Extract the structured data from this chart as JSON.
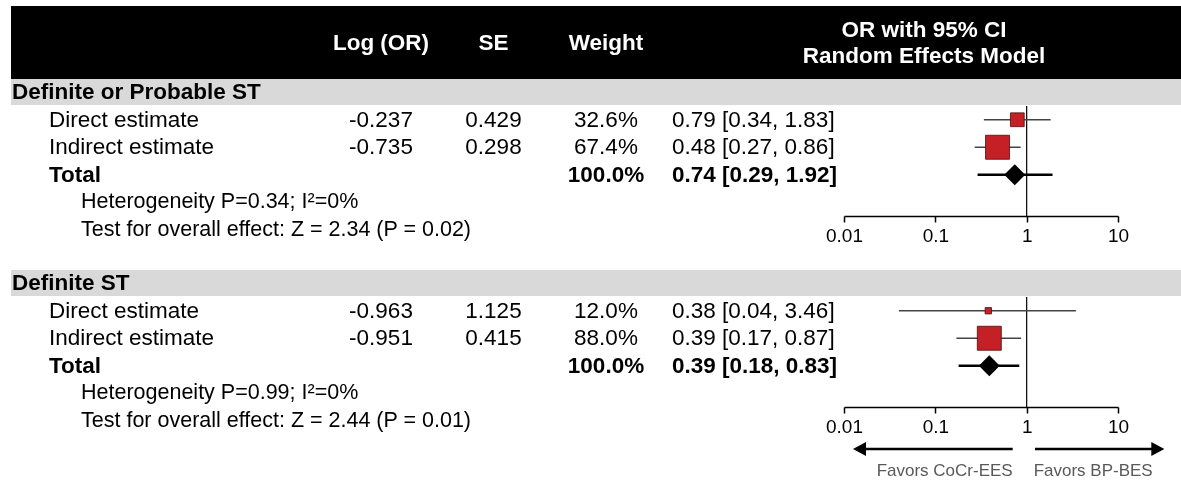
{
  "chart_data": [
    {
      "type": "other",
      "title": "Definite or Probable ST",
      "categories": [
        "Log (OR)",
        "SE",
        "Weight"
      ],
      "y_categories": [
        "Direct estimate",
        "Indirect estimate",
        "Total"
      ],
      "cell_labels": [
        [
          "-0.237",
          "0.429",
          "32.6%"
        ],
        [
          "-0.735",
          "0.298",
          "67.4%"
        ],
        [
          null,
          null,
          "100.0%"
        ]
      ],
      "annotations": [
        "Heterogeneity P=0.34; I²=0%",
        "Test for overall effect: Z = 2.34 (P = 0.02)"
      ]
    },
    {
      "type": "scatter",
      "title": "OR with 95% CI\nRandom Effects Model",
      "orientation": "horizontal",
      "categories": [
        "0.79 [0.34, 1.83]",
        "0.48 [0.27, 0.86]",
        "0.74 [0.29, 1.92]",
        null
      ],
      "series": [
        {
          "color": "#c42026",
          "marker": "square",
          "values": [
            0.79,
            0.48,
            null,
            null
          ],
          "errors": [
            [
              0.34,
              1.83
            ],
            [
              0.27,
              0.86
            ],
            null,
            null
          ],
          "sizes": [
            0.33,
            1,
            null,
            null
          ]
        },
        {
          "color": "#000000",
          "marker": "diamond",
          "values": [
            null,
            null,
            0.74,
            null
          ],
          "errors": [
            null,
            null,
            [
              0.29,
              1.92
            ],
            null
          ]
        }
      ],
      "log": "x",
      "xlim": [
        0.01,
        10
      ],
      "xticks": [
        0.01,
        0.1,
        1,
        10
      ],
      "ref_lines": [
        {
          "axis": "x",
          "value": 1
        }
      ]
    },
    {
      "type": "other",
      "title": "Definite ST",
      "categories": [
        null,
        null,
        null
      ],
      "y_categories": [
        "Direct estimate",
        "Indirect estimate",
        "Total"
      ],
      "cell_labels": [
        [
          "-0.963",
          "1.125",
          "12.0%"
        ],
        [
          "-0.951",
          "0.415",
          "88.0%"
        ],
        [
          null,
          null,
          "100.0%"
        ]
      ],
      "annotations": [
        "Heterogeneity P=0.99; I²=0%",
        "Test for overall effect: Z = 2.44 (P = 0.01)"
      ]
    },
    {
      "type": "scatter",
      "orientation": "horizontal",
      "categories": [
        "0.38 [0.04, 3.46]",
        "0.39 [0.17, 0.87]",
        "0.39 [0.18, 0.83]",
        null
      ],
      "series": [
        {
          "color": "#c42026",
          "marker": "square",
          "values": [
            0.38,
            0.39,
            null,
            null
          ],
          "errors": [
            [
              0.04,
              3.46
            ],
            [
              0.17,
              0.87
            ],
            null,
            null
          ],
          "sizes": [
            0.07,
            1,
            null,
            null
          ]
        },
        {
          "color": "#000000",
          "marker": "diamond",
          "values": [
            null,
            null,
            0.39,
            null
          ],
          "errors": [
            null,
            null,
            [
              0.18,
              0.83
            ],
            null
          ]
        }
      ],
      "log": "x",
      "xlim": [
        0.01,
        10
      ],
      "xticks": [
        0.01,
        0.1,
        1,
        10
      ],
      "ref_lines": [
        {
          "axis": "x",
          "value": 1
        }
      ],
      "annotations": [
        "Favors CoCr-EES",
        "Favors BP-BES"
      ]
    }
  ]
}
